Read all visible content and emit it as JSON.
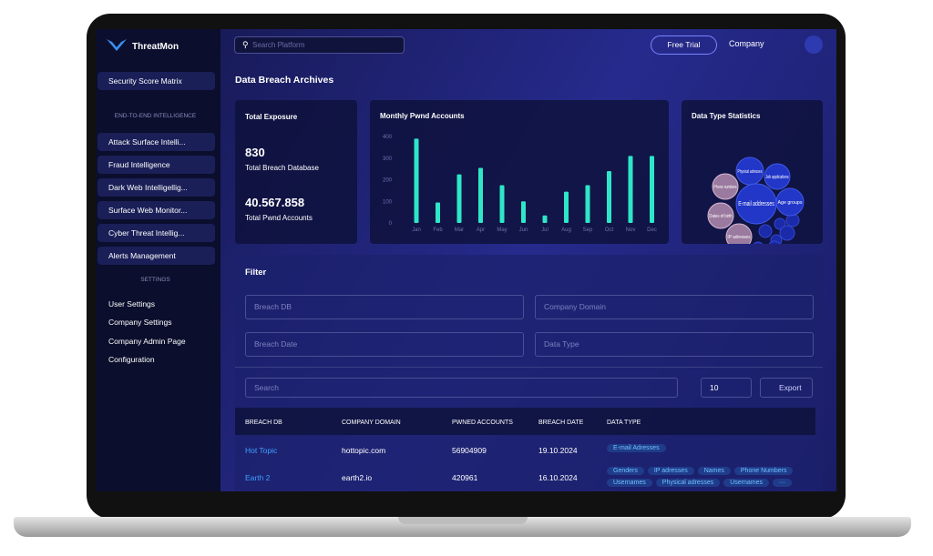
{
  "app": {
    "brand": "ThreatMon",
    "search_placeholder": "Search Platform",
    "free_trial": "Free Trial",
    "company": "Company"
  },
  "sidebar": {
    "top_item": "Security Score Matrix",
    "section1": "END-TO-END INTELLIGENCE",
    "menu": [
      "Attack Surface Intelli...",
      "Fraud Intelligence",
      "Dark Web Intelligellig...",
      "Surface Web Monitor...",
      "Cyber Threat Intellig...",
      "Alerts Management"
    ],
    "section2": "SETTINGS",
    "settings": [
      "User Settings",
      "Company Settings",
      "Company Admin Page",
      "Configuration"
    ]
  },
  "page": {
    "title": "Data Breach Archives"
  },
  "exposure": {
    "title": "Total Exposure",
    "stats": [
      {
        "value": "830",
        "label": "Total Breach Database"
      },
      {
        "value": "40.567.858",
        "label": "Total Pwnd Accounts"
      }
    ]
  },
  "monthly_chart": {
    "type": "bar",
    "title": "Monthly Pwnd Accounts",
    "categories": [
      "Jan",
      "Feb",
      "Mar",
      "Apr",
      "May",
      "Jun",
      "Jul",
      "Aug",
      "Sep",
      "Oct",
      "Nov",
      "Dec"
    ],
    "values": [
      390,
      95,
      225,
      255,
      175,
      100,
      35,
      145,
      175,
      240,
      310,
      310
    ],
    "color": "#2ee6c8",
    "ylim": [
      0,
      400
    ],
    "yticks": [
      0,
      100,
      200,
      300,
      400
    ]
  },
  "data_types": {
    "title": "Data Type Statistics",
    "bubbles": [
      "Physical adresses",
      "Job applications",
      "Phone numbers",
      "E-mail addresses",
      "Age groups",
      "Dates of birth",
      "IP adresses"
    ]
  },
  "filter": {
    "title": "Filter",
    "fields": [
      "Breach DB",
      "Company Domain",
      "Breach Date",
      "Data Type"
    ],
    "search": "Search",
    "page_size": "10",
    "export": "Export"
  },
  "table": {
    "columns": [
      "BREACH DB",
      "COMPANY DOMAIN",
      "PWNED ACCOUNTS",
      "BREACH DATE",
      "DATA TYPE"
    ],
    "rows": [
      [
        "Hot Topic",
        "hottopic.com",
        "56904909",
        "19.10.2024",
        [
          "E-mail Adresses"
        ]
      ],
      [
        "Earth 2",
        "earth2.io",
        "420961",
        "16.10.2024",
        [
          "Genders",
          "IP adresses",
          "Names",
          "Phone Numbers",
          "Usernames",
          "Physical adresses",
          "Usernames",
          "···"
        ]
      ]
    ]
  }
}
